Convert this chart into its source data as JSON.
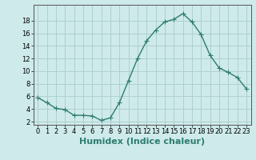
{
  "x": [
    0,
    1,
    2,
    3,
    4,
    5,
    6,
    7,
    8,
    9,
    10,
    11,
    12,
    13,
    14,
    15,
    16,
    17,
    18,
    19,
    20,
    21,
    22,
    23
  ],
  "y": [
    5.8,
    5.0,
    4.1,
    3.9,
    3.0,
    3.0,
    2.9,
    2.2,
    2.6,
    5.0,
    8.5,
    12.0,
    14.8,
    16.5,
    17.8,
    18.2,
    19.1,
    17.8,
    15.8,
    12.5,
    10.5,
    9.8,
    9.0,
    7.2
  ],
  "line_color": "#2e7d70",
  "marker": "+",
  "marker_size": 4,
  "bg_color": "#ceeaea",
  "grid_color": "#aed0d0",
  "xlabel": "Humidex (Indice chaleur)",
  "xlabel_fontsize": 8,
  "ylim": [
    1.5,
    20.5
  ],
  "xlim": [
    -0.5,
    23.5
  ],
  "yticks": [
    2,
    4,
    6,
    8,
    10,
    12,
    14,
    16,
    18
  ],
  "xticks": [
    0,
    1,
    2,
    3,
    4,
    5,
    6,
    7,
    8,
    9,
    10,
    11,
    12,
    13,
    14,
    15,
    16,
    17,
    18,
    19,
    20,
    21,
    22,
    23
  ],
  "tick_fontsize": 6,
  "linewidth": 1.0
}
